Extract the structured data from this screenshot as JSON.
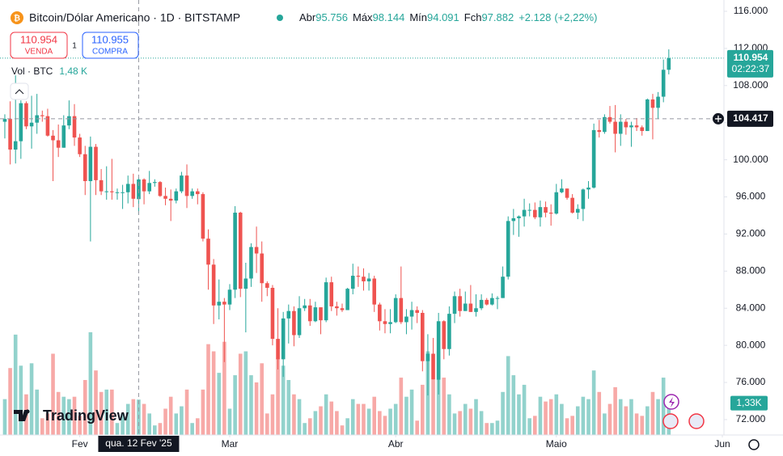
{
  "chart_data": {
    "type": "candlestick",
    "title": "Bitcoin/Dólar Americano · 1D · BITSTAMP",
    "legend": {
      "open_label": "Abr",
      "open": "95.756",
      "high_label": "Máx",
      "high": "98.144",
      "low_label": "Mín",
      "low": "94.091",
      "close_label": "Fch",
      "close": "97.882",
      "change": "+2.128",
      "change_pct": "(+2,22%)"
    },
    "trade": {
      "sell": "110.954",
      "sell_label": "VENDA",
      "spread": "1",
      "buy": "110.955",
      "buy_label": "COMPRA"
    },
    "brand": "TradingView",
    "up_color": "#26a69a",
    "down_color": "#ef5350",
    "open": [
      104100,
      104400,
      101100,
      102000,
      106100,
      103600,
      104000,
      104800,
      104700,
      102600,
      102100,
      101300,
      103700,
      104700,
      102400,
      100600,
      97700,
      101400,
      97800,
      96600,
      96600,
      96500,
      96500,
      96500,
      97400,
      95756,
      97882,
      96600,
      97500,
      97600,
      96100,
      95800,
      95600,
      96600,
      98300,
      96100,
      96600,
      96300,
      91500,
      88700,
      84300,
      84700,
      84400,
      86000,
      94300,
      86100,
      87200,
      90600,
      89900,
      86700,
      86200,
      80700,
      78500,
      82900,
      83700,
      81100,
      84000,
      84300,
      82600,
      84100,
      82700,
      86800,
      84200,
      84000,
      83800,
      86100,
      87500,
      87400,
      86900,
      87200,
      84400,
      82600,
      82300,
      82500,
      85100,
      82500,
      83100,
      83800,
      83500,
      78300,
      79100,
      76300,
      82600,
      79600,
      83400,
      85300,
      83700,
      84500,
      83600,
      84000,
      84900,
      84400,
      85100,
      85100,
      87400,
      93400,
      93700,
      93900,
      94600,
      94600,
      93800,
      94900,
      94300,
      94200,
      96500,
      96900,
      95900,
      94300,
      94700,
      96800,
      97000,
      103200,
      103000,
      104600,
      104100,
      102800,
      104100,
      103500,
      103700,
      103500,
      103100,
      106500,
      105600,
      106800,
      109700
    ],
    "high": [
      104900,
      106300,
      109100,
      106400,
      106300,
      106900,
      107100,
      105300,
      105500,
      103200,
      103800,
      104800,
      106400,
      106000,
      102800,
      101500,
      102500,
      101700,
      99000,
      99300,
      100100,
      96900,
      97300,
      98300,
      98500,
      98144,
      98000,
      98800,
      97900,
      97700,
      97000,
      96800,
      96900,
      98700,
      99500,
      96900,
      96900,
      96500,
      92500,
      89300,
      87100,
      85100,
      86600,
      95000,
      94400,
      88900,
      91000,
      92800,
      91200,
      86900,
      86500,
      84000,
      83600,
      84400,
      84200,
      85300,
      85000,
      85000,
      84700,
      84100,
      87300,
      87400,
      84700,
      84500,
      86200,
      88800,
      88500,
      88300,
      87800,
      87500,
      84600,
      83900,
      83900,
      85500,
      88500,
      83900,
      84700,
      84200,
      83800,
      81200,
      80800,
      83500,
      82700,
      84200,
      85800,
      86100,
      85800,
      86500,
      85500,
      85500,
      85100,
      85600,
      85300,
      88500,
      93900,
      94700,
      94000,
      95800,
      95300,
      95400,
      95600,
      95500,
      95200,
      97400,
      97900,
      96900,
      96300,
      95200,
      96900,
      97700,
      103900,
      104300,
      104900,
      105800,
      105900,
      104900,
      104400,
      104100,
      104500,
      103700,
      106600,
      107100,
      107300,
      110800,
      111900
    ],
    "low": [
      102300,
      99500,
      99600,
      100100,
      103300,
      101200,
      102800,
      104100,
      102500,
      97700,
      100300,
      101300,
      103300,
      101500,
      100300,
      96200,
      91200,
      96200,
      96200,
      95700,
      95700,
      95700,
      94700,
      95300,
      94900,
      94091,
      95200,
      96300,
      97100,
      96000,
      95100,
      93400,
      95300,
      96400,
      94800,
      95800,
      95200,
      91200,
      86000,
      82300,
      82800,
      78200,
      83800,
      85100,
      85200,
      81400,
      86300,
      87800,
      84700,
      85300,
      80000,
      77400,
      76600,
      80200,
      79900,
      80800,
      83700,
      82100,
      82500,
      81200,
      82500,
      83700,
      83200,
      83600,
      83800,
      85500,
      86300,
      85900,
      85900,
      83600,
      81600,
      81300,
      81300,
      82400,
      82300,
      81200,
      81700,
      82400,
      77200,
      74600,
      76300,
      74700,
      78500,
      78900,
      82400,
      83100,
      83700,
      83600,
      83100,
      83800,
      84300,
      84300,
      83900,
      85100,
      87100,
      91900,
      91700,
      92800,
      93900,
      93600,
      92800,
      93800,
      92900,
      94100,
      96400,
      95700,
      94200,
      93600,
      93400,
      95800,
      96900,
      102400,
      102800,
      103900,
      100800,
      101500,
      102700,
      101400,
      103100,
      102600,
      103100,
      102200,
      104400,
      106200,
      109200
    ],
    "close": [
      104400,
      101100,
      102000,
      106100,
      103600,
      104000,
      104800,
      104700,
      102600,
      102100,
      101300,
      103700,
      104700,
      102400,
      100600,
      97700,
      101400,
      97800,
      96600,
      96600,
      96500,
      96500,
      96500,
      97400,
      95800,
      97882,
      96600,
      97500,
      97600,
      96100,
      95800,
      95600,
      96600,
      98300,
      96100,
      96600,
      96300,
      91500,
      88700,
      84300,
      84700,
      84400,
      86000,
      94300,
      86100,
      87200,
      90600,
      89900,
      86700,
      86200,
      80700,
      78500,
      82900,
      83700,
      81100,
      84000,
      84300,
      82600,
      84100,
      82700,
      86800,
      84200,
      84000,
      83800,
      86100,
      87500,
      87400,
      86900,
      87200,
      84400,
      82600,
      82300,
      82500,
      85100,
      82500,
      83100,
      83800,
      83500,
      78300,
      79100,
      76300,
      82600,
      79600,
      83400,
      85300,
      83700,
      84500,
      83600,
      84000,
      84900,
      84400,
      85100,
      85100,
      87400,
      93400,
      93700,
      93900,
      94600,
      94600,
      93800,
      94900,
      94300,
      94200,
      96500,
      96900,
      95900,
      94300,
      94700,
      96800,
      97000,
      103200,
      103000,
      104600,
      104100,
      102800,
      104100,
      103500,
      103700,
      103500,
      103100,
      106500,
      105600,
      106800,
      109700,
      110954
    ],
    "volume": {
      "name": "Vol · BTC",
      "values": [
        1500,
        2800,
        4200,
        2900,
        1700,
        3000,
        1900,
        700,
        900,
        3400,
        1800,
        1600,
        1500,
        1600,
        800,
        2300,
        4300,
        2700,
        1800,
        1900,
        1900,
        500,
        900,
        1300,
        1500,
        1480,
        1300,
        900,
        400,
        500,
        1100,
        1600,
        900,
        1200,
        1900,
        500,
        700,
        1900,
        3800,
        3500,
        2600,
        3900,
        1100,
        2500,
        3400,
        3500,
        2500,
        2200,
        3000,
        900,
        1700,
        3200,
        2900,
        2300,
        1700,
        1500,
        500,
        700,
        1000,
        1200,
        1700,
        1400,
        1000,
        400,
        700,
        1500,
        1300,
        1300,
        1100,
        1600,
        1000,
        800,
        1100,
        1300,
        2400,
        1600,
        1900,
        600,
        2100,
        3500,
        2300,
        3500,
        2400,
        1700,
        900,
        1000,
        1300,
        1100,
        1500,
        1000,
        500,
        500,
        600,
        1800,
        3300,
        2500,
        1700,
        2100,
        700,
        800,
        1600,
        1400,
        1500,
        1700,
        1300,
        700,
        800,
        1200,
        1600,
        1500,
        2700,
        1800,
        900,
        1300,
        2000,
        1500,
        1200,
        1500,
        900,
        800,
        1200,
        1800,
        1500,
        2400,
        1330
      ],
      "hover_index": 25,
      "hover_label": "1,48 K",
      "last_label": "1,33K",
      "ylim": [
        0,
        18200
      ]
    },
    "ylim": [
      70340,
      117220
    ],
    "yticks": [
      {
        "value": 116000,
        "label": "116.000"
      },
      {
        "value": 112000,
        "label": "112.000"
      },
      {
        "value": 108000,
        "label": "108.000"
      },
      {
        "value": 104000,
        "label": "104.000"
      },
      {
        "value": 100000,
        "label": "100.000"
      },
      {
        "value": 96000,
        "label": "96.000"
      },
      {
        "value": 92000,
        "label": "92.000"
      },
      {
        "value": 88000,
        "label": "88.000"
      },
      {
        "value": 84000,
        "label": "84.000"
      },
      {
        "value": 80000,
        "label": "80.000"
      },
      {
        "value": 76000,
        "label": "76.000"
      },
      {
        "value": 72000,
        "label": "72.000"
      }
    ],
    "xlim": [
      -0.9,
      134.3
    ],
    "xticks": [
      {
        "value": 14,
        "label": "Fev"
      },
      {
        "value": 42,
        "label": "Mar"
      },
      {
        "value": 73,
        "label": "Abr"
      },
      {
        "value": 103,
        "label": "Maio"
      },
      {
        "value": 134,
        "label": "Jun"
      }
    ],
    "last_price": {
      "value": 110954,
      "label": "110.954",
      "countdown": "02:22:37"
    },
    "crosshair": {
      "x": 25,
      "x_label": "qua. 12 Fev '25",
      "price": 104417,
      "price_label": "104.417"
    },
    "grid": false
  }
}
